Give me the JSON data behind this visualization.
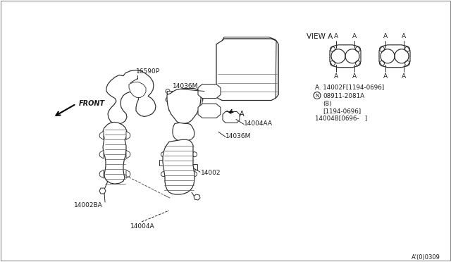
{
  "background_color": "#ffffff",
  "border_color": "#aaaaaa",
  "line_color": "#2a2a2a",
  "text_color": "#1a1a1a",
  "diagram_note": "A’'0'0309",
  "labels": {
    "front": "FRONT",
    "view_a": "VIEW A",
    "part_16590P": "16590P",
    "part_14036M_1": "14036M",
    "part_14036M_2": "14036M",
    "part_14004AA": "14004AA",
    "part_14002": "14002",
    "part_14002BA": "14002BA",
    "part_14004A": "14004A",
    "ref_a": "A. 14002F[1194-0696]",
    "ref_n": "08911-2081A",
    "ref_8": "(8)",
    "ref_date": "[1194-0696]",
    "ref_14004B": "14004B[0696-   ]",
    "diagram_id": "A’(0)0309"
  },
  "figsize": [
    6.4,
    3.72
  ],
  "dpi": 100
}
